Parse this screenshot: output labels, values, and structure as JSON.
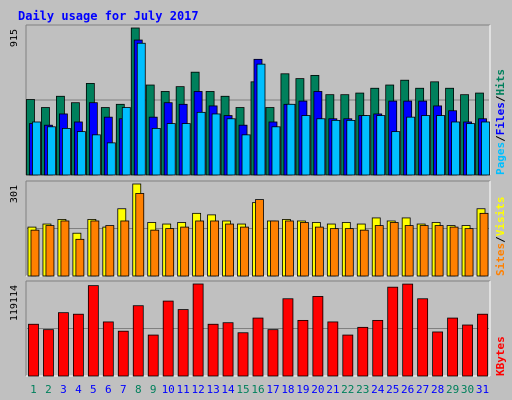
{
  "chart_data": {
    "type": "bar",
    "title": "Daily usage for July 2017",
    "categories": [
      "1",
      "2",
      "3",
      "4",
      "5",
      "6",
      "7",
      "8",
      "9",
      "10",
      "11",
      "12",
      "13",
      "14",
      "15",
      "16",
      "17",
      "18",
      "19",
      "20",
      "21",
      "22",
      "23",
      "24",
      "25",
      "26",
      "27",
      "28",
      "29",
      "30",
      "31"
    ],
    "weekend_days": [
      1,
      2,
      8,
      9,
      15,
      16,
      22,
      23,
      29,
      30
    ],
    "panels": [
      {
        "id": "hits-files-pages",
        "y_max_label": "915",
        "y_max": 915,
        "series": [
          {
            "name": "Hits",
            "color": "#00805c",
            "values": [
              470,
              420,
              490,
              450,
              570,
              420,
              440,
              915,
              560,
              520,
              550,
              640,
              520,
              490,
              420,
              580,
              420,
              630,
              600,
              620,
              500,
              500,
              510,
              540,
              560,
              590,
              540,
              580,
              540,
              500,
              510
            ]
          },
          {
            "name": "Files",
            "color": "#0000ff",
            "values": [
              320,
              310,
              380,
              330,
              450,
              360,
              350,
              840,
              360,
              450,
              440,
              520,
              430,
              370,
              310,
              720,
              330,
              440,
              460,
              520,
              350,
              350,
              370,
              380,
              460,
              460,
              460,
              430,
              400,
              330,
              350
            ]
          },
          {
            "name": "Pages",
            "color": "#00bfff",
            "values": [
              330,
              300,
              290,
              270,
              250,
              200,
              420,
              820,
              290,
              320,
              320,
              390,
              380,
              350,
              250,
              690,
              300,
              440,
              370,
              350,
              340,
              340,
              370,
              370,
              270,
              360,
              370,
              370,
              330,
              320,
              330
            ]
          }
        ],
        "axis_labels": [
          {
            "text": "Pages",
            "color": "#00bfff"
          },
          {
            "text": "Files",
            "color": "#0000ff"
          },
          {
            "text": "Hits",
            "color": "#00805c"
          }
        ]
      },
      {
        "id": "visits-sites",
        "y_max_label": "301",
        "y_max": 301,
        "series": [
          {
            "name": "Visits",
            "color": "#ffff00",
            "values": [
              160,
              170,
              185,
              140,
              185,
              160,
              220,
              301,
              175,
              170,
              175,
              205,
              200,
              180,
              170,
              240,
              180,
              185,
              180,
              175,
              170,
              175,
              170,
              190,
              180,
              190,
              170,
              175,
              165,
              165,
              220
            ]
          },
          {
            "name": "Sites",
            "color": "#ff8000",
            "values": [
              150,
              165,
              180,
              120,
              180,
              165,
              180,
              270,
              150,
              155,
              160,
              180,
              180,
              170,
              160,
              250,
              180,
              180,
              175,
              160,
              155,
              155,
              150,
              165,
              175,
              165,
              165,
              165,
              160,
              155,
              205
            ]
          }
        ],
        "axis_labels": [
          {
            "text": "Sites",
            "color": "#ff8000"
          },
          {
            "text": "Visits",
            "color": "#ffff00"
          }
        ]
      },
      {
        "id": "kbytes",
        "y_max_label": "119114",
        "y_max": 119114,
        "series": [
          {
            "name": "KBytes",
            "color": "#ff0000",
            "values": [
              67000,
              60000,
              82000,
              80000,
              117000,
              70000,
              58000,
              91000,
              53000,
              97000,
              86000,
              119114,
              67000,
              69000,
              56000,
              75000,
              60000,
              100000,
              72000,
              103000,
              70000,
              53000,
              63000,
              72000,
              115000,
              119000,
              100000,
              57000,
              75000,
              66000,
              80000
            ]
          }
        ],
        "axis_labels": [
          {
            "text": "KBytes",
            "color": "#ff0000"
          }
        ]
      }
    ],
    "grid": true,
    "colors": {
      "background": "#c0c0c0",
      "frame_light": "#ffffff",
      "frame_dark": "#808080",
      "title": "#0000ff",
      "weekday_label": "#0000ff",
      "weekend_label": "#00805c"
    }
  }
}
